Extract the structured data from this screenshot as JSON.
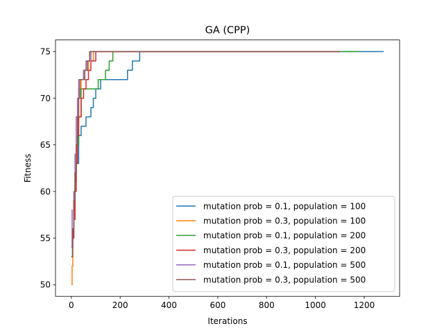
{
  "chart_data": {
    "type": "line",
    "title": "GA (CPP)",
    "xlabel": "Iterations",
    "ylabel": "Fitness",
    "xlim": [
      -65,
      1345
    ],
    "ylim": [
      48.75,
      76.25
    ],
    "xticks": [
      0,
      200,
      400,
      600,
      800,
      1000,
      1200
    ],
    "yticks": [
      50,
      55,
      60,
      65,
      70,
      75
    ],
    "grid": false,
    "legend_position": "lower-right",
    "series": [
      {
        "name": "mutation prob = 0.1, population = 100",
        "color": "#1f77b4",
        "step": true,
        "x": [
          0,
          5,
          10,
          15,
          20,
          30,
          40,
          50,
          60,
          80,
          90,
          100,
          120,
          160,
          230,
          250,
          280,
          1280
        ],
        "y": [
          53,
          55,
          58,
          61,
          63,
          66,
          67,
          67,
          68,
          69,
          70,
          71,
          72,
          72,
          73,
          74,
          75,
          75
        ]
      },
      {
        "name": "mutation prob = 0.3, population = 100",
        "color": "#ff7f0e",
        "step": true,
        "x": [
          0,
          3,
          6,
          10,
          15,
          20,
          25,
          30,
          40,
          50,
          60,
          70,
          80,
          90,
          100,
          1100
        ],
        "y": [
          50,
          52,
          55,
          58,
          62,
          65,
          68,
          71,
          72,
          73,
          73,
          74,
          74,
          75,
          75,
          75
        ]
      },
      {
        "name": "mutation prob = 0.1, population = 200",
        "color": "#2ca02c",
        "step": true,
        "x": [
          0,
          5,
          10,
          15,
          20,
          30,
          40,
          55,
          80,
          110,
          140,
          155,
          170,
          1180
        ],
        "y": [
          53,
          56,
          59,
          62,
          65,
          68,
          71,
          71,
          71,
          72,
          73,
          74,
          75,
          75
        ]
      },
      {
        "name": "mutation prob = 0.3, population = 200",
        "color": "#d62728",
        "step": true,
        "x": [
          0,
          5,
          10,
          15,
          20,
          25,
          30,
          40,
          50,
          60,
          70,
          80,
          90,
          100,
          1100
        ],
        "y": [
          54,
          55,
          57,
          60,
          63,
          66,
          68,
          70,
          71,
          72,
          73,
          74,
          74,
          75,
          75
        ]
      },
      {
        "name": "mutation prob = 0.1, population = 500",
        "color": "#9467bd",
        "step": true,
        "x": [
          0,
          3,
          6,
          10,
          15,
          20,
          25,
          30,
          40,
          50,
          60,
          70,
          80,
          90,
          100,
          1100
        ],
        "y": [
          58,
          54,
          56,
          60,
          64,
          68,
          70,
          72,
          72,
          73,
          74,
          74,
          75,
          75,
          75,
          75
        ]
      },
      {
        "name": "mutation prob = 0.3, population = 500",
        "color": "#8c564b",
        "step": true,
        "x": [
          0,
          5,
          10,
          15,
          20,
          25,
          30,
          35,
          45,
          55,
          65,
          75,
          1100
        ],
        "y": [
          53,
          56,
          59,
          62,
          65,
          68,
          70,
          72,
          72,
          73,
          74,
          75,
          75
        ]
      }
    ]
  }
}
